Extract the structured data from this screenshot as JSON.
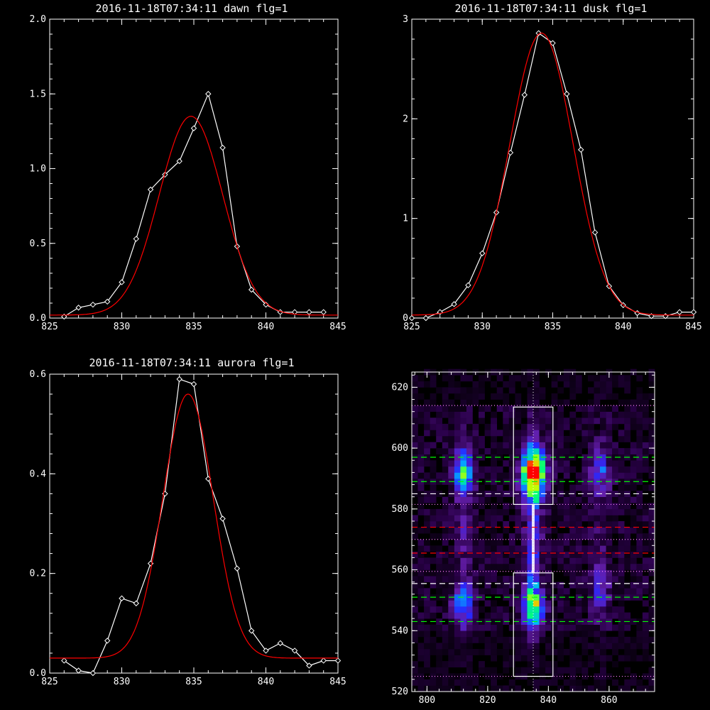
{
  "chart_data": [
    {
      "type": "line",
      "title": "2016-11-18T07:34:11 dawn flg=1",
      "xlim": [
        825,
        845
      ],
      "ylim": [
        0,
        2.0
      ],
      "xticks": [
        825,
        830,
        835,
        840,
        845
      ],
      "xticklabels": [
        "825",
        "830",
        "835",
        "840",
        "845"
      ],
      "yticks": [
        0,
        0.5,
        1.0,
        1.5,
        2.0
      ],
      "yticklabels": [
        "0.0",
        "0.5",
        "1.0",
        "1.5",
        "2.0"
      ],
      "series": [
        {
          "color": "#ffffff",
          "marker": "diamond",
          "x": [
            826,
            827,
            828,
            829,
            830,
            831,
            832,
            833,
            834,
            835,
            836,
            837,
            838,
            839,
            840,
            841,
            842,
            843,
            844
          ],
          "values": [
            0.01,
            0.07,
            0.09,
            0.11,
            0.24,
            0.53,
            0.86,
            0.96,
            1.05,
            1.27,
            1.5,
            1.14,
            0.48,
            0.19,
            0.09,
            0.04,
            0.04,
            0.04,
            0.04
          ]
        },
        {
          "color": "#ff0000",
          "marker": "none",
          "gauss": {
            "amp": 1.33,
            "mu": 834.8,
            "sigma": 2.2,
            "base": 0.02
          }
        }
      ]
    },
    {
      "type": "line",
      "title": "2016-11-18T07:34:11 dusk flg=1",
      "xlim": [
        825,
        845
      ],
      "ylim": [
        0,
        3
      ],
      "xticks": [
        825,
        830,
        835,
        840,
        845
      ],
      "xticklabels": [
        "825",
        "830",
        "835",
        "840",
        "845"
      ],
      "yticks": [
        0,
        1,
        2,
        3
      ],
      "yticklabels": [
        "0",
        "1",
        "2",
        "3"
      ],
      "series": [
        {
          "color": "#ffffff",
          "marker": "diamond",
          "x": [
            825,
            826,
            827,
            828,
            829,
            830,
            831,
            832,
            833,
            834,
            835,
            836,
            837,
            838,
            839,
            840,
            841,
            842,
            843,
            844,
            845
          ],
          "values": [
            0.0,
            0.0,
            0.06,
            0.14,
            0.33,
            0.65,
            1.06,
            1.66,
            2.24,
            2.86,
            2.76,
            2.25,
            1.69,
            0.86,
            0.32,
            0.13,
            0.05,
            0.02,
            0.02,
            0.06,
            0.06
          ]
        },
        {
          "color": "#ff0000",
          "marker": "none",
          "gauss": {
            "amp": 2.83,
            "mu": 834.2,
            "sigma": 2.25,
            "base": 0.03
          }
        }
      ]
    },
    {
      "type": "line",
      "title": "2016-11-18T07:34:11 aurora flg=1",
      "xlim": [
        825,
        845
      ],
      "ylim": [
        0,
        0.6
      ],
      "xticks": [
        825,
        830,
        835,
        840,
        845
      ],
      "xticklabels": [
        "825",
        "830",
        "835",
        "840",
        "845"
      ],
      "yticks": [
        0,
        0.2,
        0.4,
        0.6
      ],
      "yticklabels": [
        "0.0",
        "0.2",
        "0.4",
        "0.6"
      ],
      "series": [
        {
          "color": "#ffffff",
          "marker": "diamond",
          "x": [
            826,
            827,
            828,
            829,
            830,
            831,
            832,
            833,
            834,
            835,
            836,
            837,
            838,
            839,
            840,
            841,
            842,
            843,
            844,
            845
          ],
          "values": [
            0.025,
            0.005,
            0.0,
            0.065,
            0.15,
            0.14,
            0.22,
            0.36,
            0.59,
            0.58,
            0.39,
            0.31,
            0.21,
            0.085,
            0.045,
            0.06,
            0.045,
            0.015,
            0.025,
            0.025
          ]
        },
        {
          "color": "#ff0000",
          "marker": "none",
          "gauss": {
            "amp": 0.53,
            "mu": 834.6,
            "sigma": 1.75,
            "base": 0.03
          }
        }
      ]
    },
    {
      "type": "heatmap",
      "xlim": [
        795,
        875
      ],
      "ylim": [
        520,
        625
      ],
      "xticks": [
        800,
        820,
        840,
        860
      ],
      "xticklabels": [
        "800",
        "820",
        "840",
        "860"
      ],
      "yticks": [
        520,
        540,
        560,
        580,
        600,
        620
      ],
      "yticklabels": [
        "520",
        "540",
        "560",
        "580",
        "600",
        "620"
      ],
      "vertical_dotted_x": 835,
      "center_column_x": 835,
      "boxes": [
        {
          "x0": 828.5,
          "x1": 841.5,
          "y0": 581.5,
          "y1": 613.5
        },
        {
          "x0": 828.5,
          "x1": 841.5,
          "y0": 525,
          "y1": 559
        }
      ],
      "hlines": [
        {
          "y": 614,
          "color": "#ff80ff",
          "style": "dotted"
        },
        {
          "y": 597,
          "color": "#00ff00",
          "style": "dashed"
        },
        {
          "y": 589,
          "color": "#00ff00",
          "style": "dashed"
        },
        {
          "y": 585,
          "color": "#ffffff",
          "style": "dashed"
        },
        {
          "y": 581.5,
          "color": "#ff80ff",
          "style": "dotted"
        },
        {
          "y": 574,
          "color": "#ff0000",
          "style": "dashed"
        },
        {
          "y": 570,
          "color": "#ff80ff",
          "style": "dotted"
        },
        {
          "y": 565.5,
          "color": "#ff0000",
          "style": "dashed"
        },
        {
          "y": 559.5,
          "color": "#ff80ff",
          "style": "dotted"
        },
        {
          "y": 555.5,
          "color": "#ffffff",
          "style": "dashed"
        },
        {
          "y": 551,
          "color": "#00ff00",
          "style": "dashed"
        },
        {
          "y": 543,
          "color": "#00ff00",
          "style": "dashed"
        },
        {
          "y": 525,
          "color": "#ff80ff",
          "style": "dotted"
        }
      ],
      "blobs": [
        {
          "x": 835,
          "y": 592,
          "sx": 2.6,
          "sy": 5.5,
          "amp": 1.0
        },
        {
          "x": 835,
          "y": 548,
          "sx": 2.3,
          "sy": 5.0,
          "amp": 0.6
        },
        {
          "x": 835,
          "y": 570,
          "sx": 1.8,
          "sy": 20,
          "amp": 0.28
        },
        {
          "x": 812,
          "y": 592,
          "sx": 2.2,
          "sy": 5.0,
          "amp": 0.5
        },
        {
          "x": 812,
          "y": 549,
          "sx": 2.2,
          "sy": 4.5,
          "amp": 0.42
        },
        {
          "x": 812,
          "y": 570,
          "sx": 2.0,
          "sy": 22,
          "amp": 0.13
        },
        {
          "x": 857,
          "y": 593,
          "sx": 2.2,
          "sy": 5.0,
          "amp": 0.28
        },
        {
          "x": 857,
          "y": 553,
          "sx": 2.2,
          "sy": 5.0,
          "amp": 0.22
        },
        {
          "x": 857,
          "y": 570,
          "sx": 2.0,
          "sy": 24,
          "amp": 0.08
        }
      ]
    }
  ]
}
